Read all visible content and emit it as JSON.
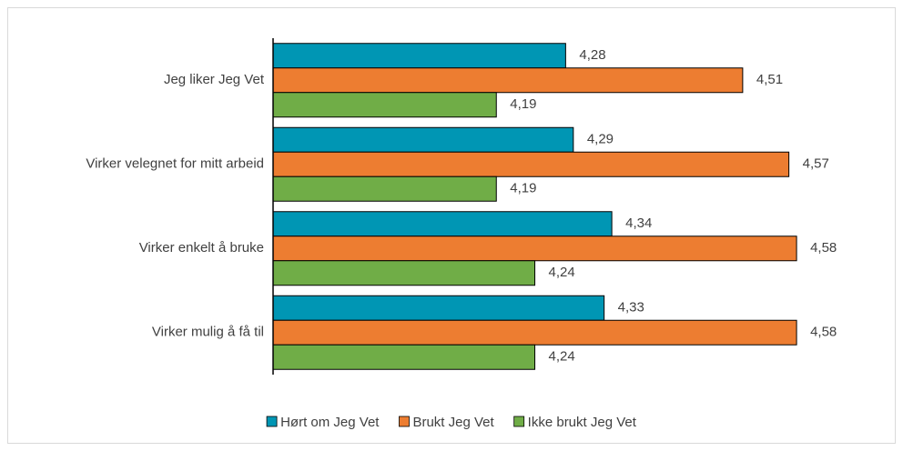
{
  "chart_data": {
    "type": "bar",
    "orientation": "horizontal",
    "categories": [
      "Jeg liker Jeg Vet",
      "Virker velegnet for mitt arbeid",
      "Virker enkelt å bruke",
      "Virker mulig å få til"
    ],
    "series": [
      {
        "name": "Hørt om Jeg Vet",
        "color": "#0096b4",
        "values": [
          4.28,
          4.29,
          4.34,
          4.33
        ],
        "value_labels": [
          "4,28",
          "4,29",
          "4,34",
          "4,33"
        ]
      },
      {
        "name": "Brukt Jeg Vet",
        "color": "#ed7d31",
        "values": [
          4.51,
          4.57,
          4.58,
          4.58
        ],
        "value_labels": [
          "4,51",
          "4,57",
          "4,58",
          "4,58"
        ]
      },
      {
        "name": "Ikke brukt Jeg Vet",
        "color": "#70ad47",
        "values": [
          4.19,
          4.19,
          4.24,
          4.24
        ],
        "value_labels": [
          "4,19",
          "4,19",
          "4,24",
          "4,24"
        ]
      }
    ],
    "xlim": [
      3.9,
      4.6
    ],
    "legend": "bottom"
  }
}
